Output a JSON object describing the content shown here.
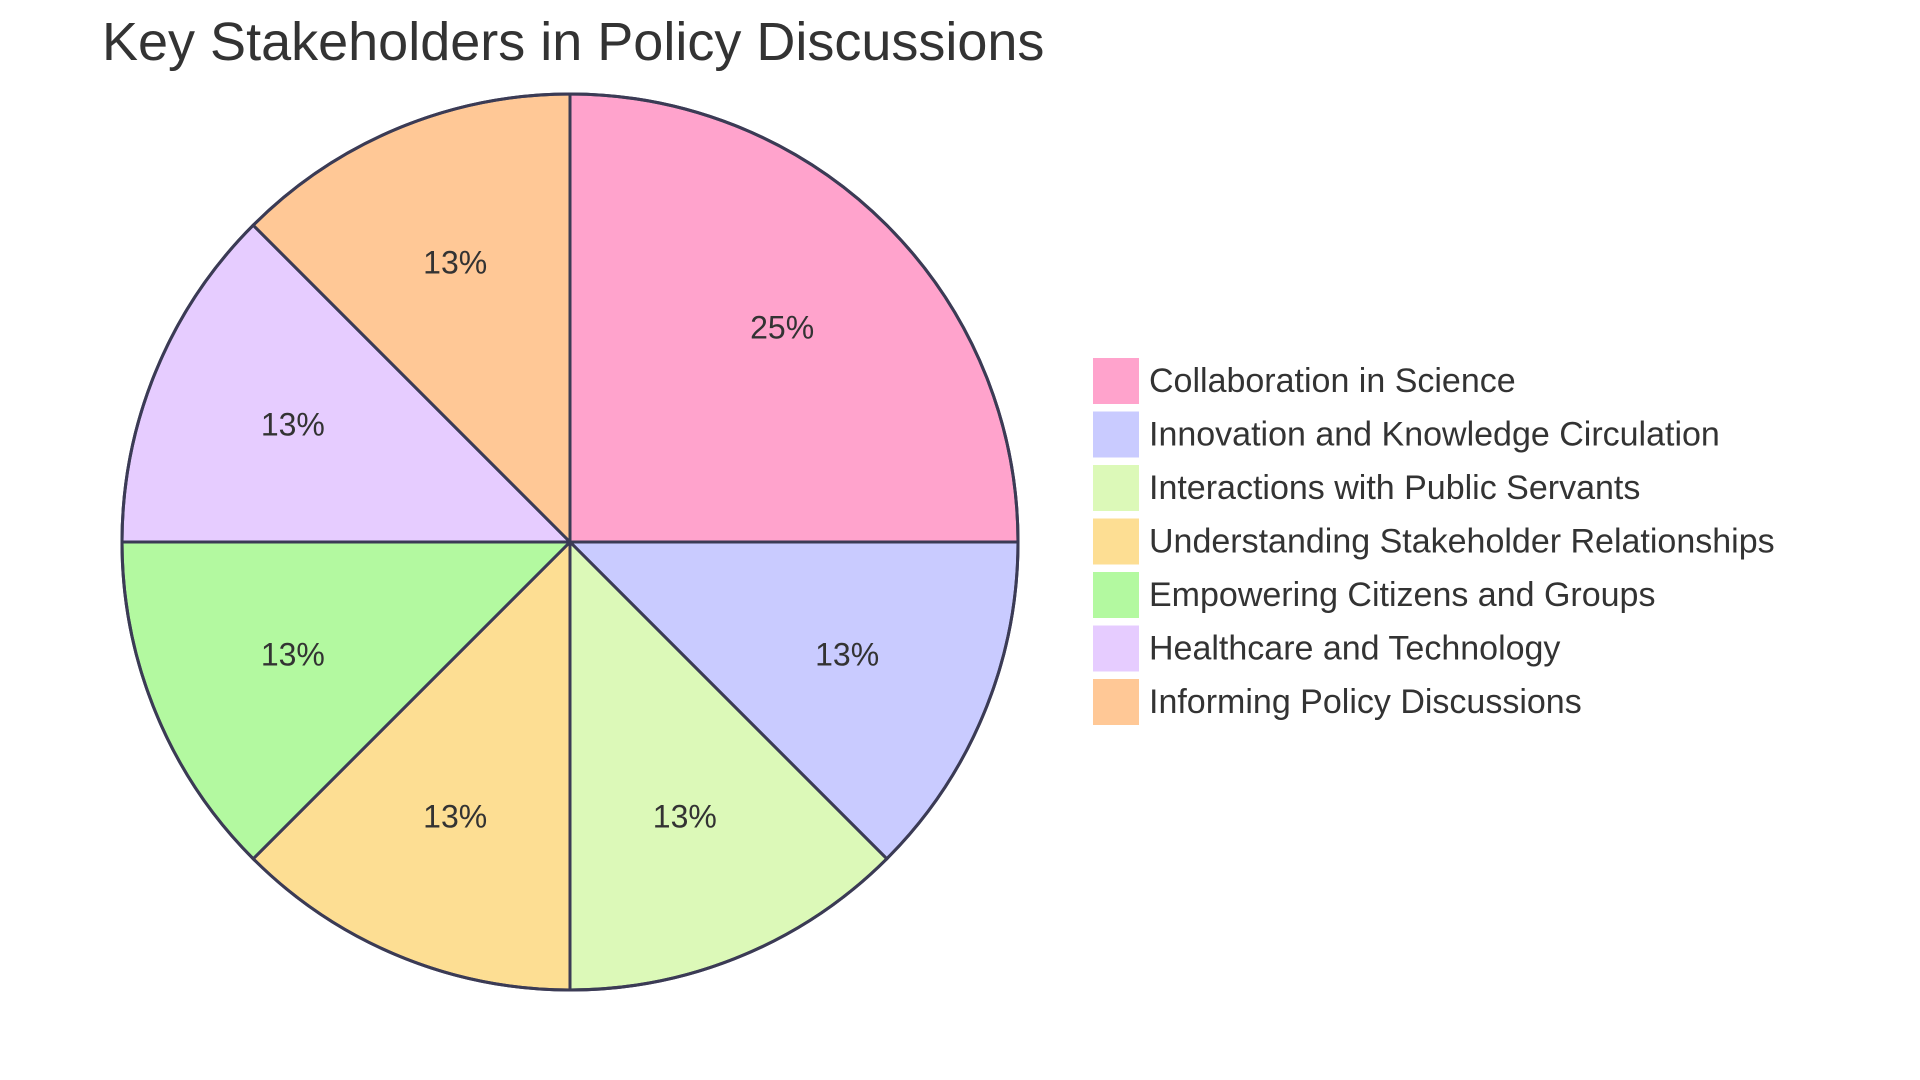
{
  "chart_data": {
    "type": "pie",
    "title": "Key Stakeholders in Policy Discussions",
    "legend_position": "right",
    "slices": [
      {
        "label": "Collaboration in Science",
        "value": 25,
        "display": "25%",
        "color": "#FFA3CC"
      },
      {
        "label": "Innovation and Knowledge Circulation",
        "value": 12.5,
        "display": "13%",
        "color": "#C9CBFF"
      },
      {
        "label": "Interactions with Public Servants",
        "value": 12.5,
        "display": "13%",
        "color": "#DCF9B8"
      },
      {
        "label": "Understanding Stakeholder Relationships",
        "value": 12.5,
        "display": "13%",
        "color": "#FDDE93"
      },
      {
        "label": "Empowering Citizens and Groups",
        "value": 12.5,
        "display": "13%",
        "color": "#B3F9A0"
      },
      {
        "label": "Healthcare and Technology",
        "value": 12.5,
        "display": "13%",
        "color": "#E6CCFF"
      },
      {
        "label": "Informing Policy Discussions",
        "value": 12.5,
        "display": "13%",
        "color": "#FFC896"
      }
    ]
  }
}
